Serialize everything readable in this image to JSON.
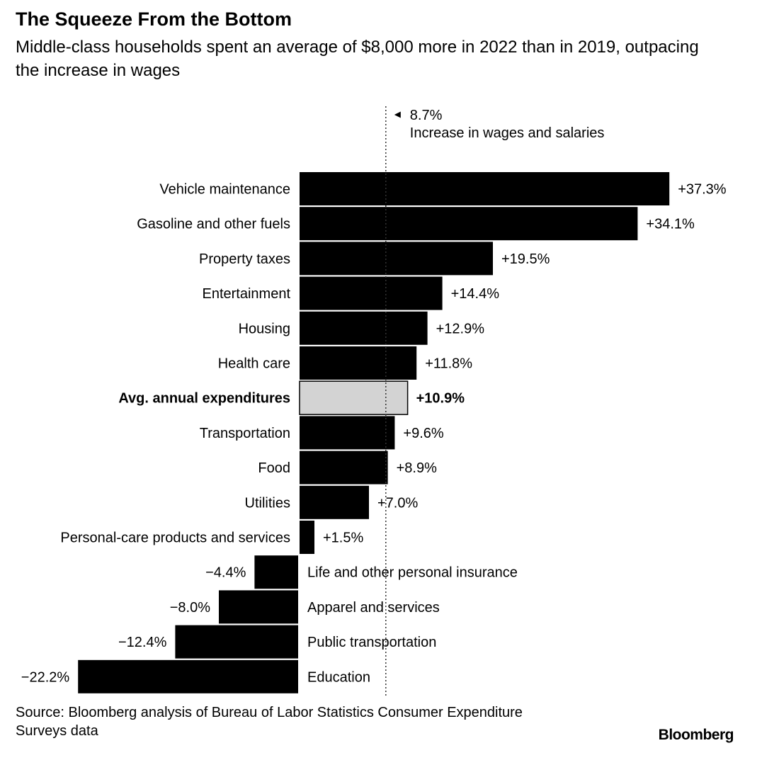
{
  "header": {
    "title": "The Squeeze From the Bottom",
    "subtitle": "Middle-class households spent an average of $8,000 more in 2022 than in 2019, outpacing the increase in wages"
  },
  "footer": {
    "source": "Source: Bloomberg analysis of Bureau of Labor Statistics Consumer Expenditure Surveys data",
    "logo": "Bloomberg"
  },
  "chart_data": {
    "type": "bar",
    "orientation": "horizontal",
    "title": "The Squeeze From the Bottom",
    "subtitle": "Middle-class households spent an average of $8,000 more in 2022 than in 2019, outpacing the increase in wages",
    "categories": [
      "Vehicle maintenance",
      "Gasoline and other fuels",
      "Property taxes",
      "Entertainment",
      "Housing",
      "Health care",
      "Avg. annual expenditures",
      "Transportation",
      "Food",
      "Utilities",
      "Personal-care products and services",
      "Life and other personal insurance",
      "Apparel and services",
      "Public transportation",
      "Education"
    ],
    "values": [
      37.3,
      34.1,
      19.5,
      14.4,
      12.9,
      11.8,
      10.9,
      9.6,
      8.9,
      7.0,
      1.5,
      -4.4,
      -8.0,
      -12.4,
      -22.2
    ],
    "value_labels": [
      "+37.3%",
      "+34.1%",
      "+19.5%",
      "+14.4%",
      "+12.9%",
      "+11.8%",
      "+10.9%",
      "+9.6%",
      "+8.9%",
      "+7.0%",
      "+1.5%",
      "−4.4%",
      "−8.0%",
      "−12.4%",
      "−22.2%"
    ],
    "highlight_category": "Avg. annual expenditures",
    "reference_line": {
      "value": 8.7,
      "label_value": "8.7%",
      "label_text": "Increase in wages and salaries"
    },
    "colors": {
      "bar": "#000000",
      "highlight_bar": "#d3d3d3",
      "highlight_stroke": "#000000",
      "reference_line": "#333333"
    },
    "grid": false,
    "legend": "none"
  }
}
